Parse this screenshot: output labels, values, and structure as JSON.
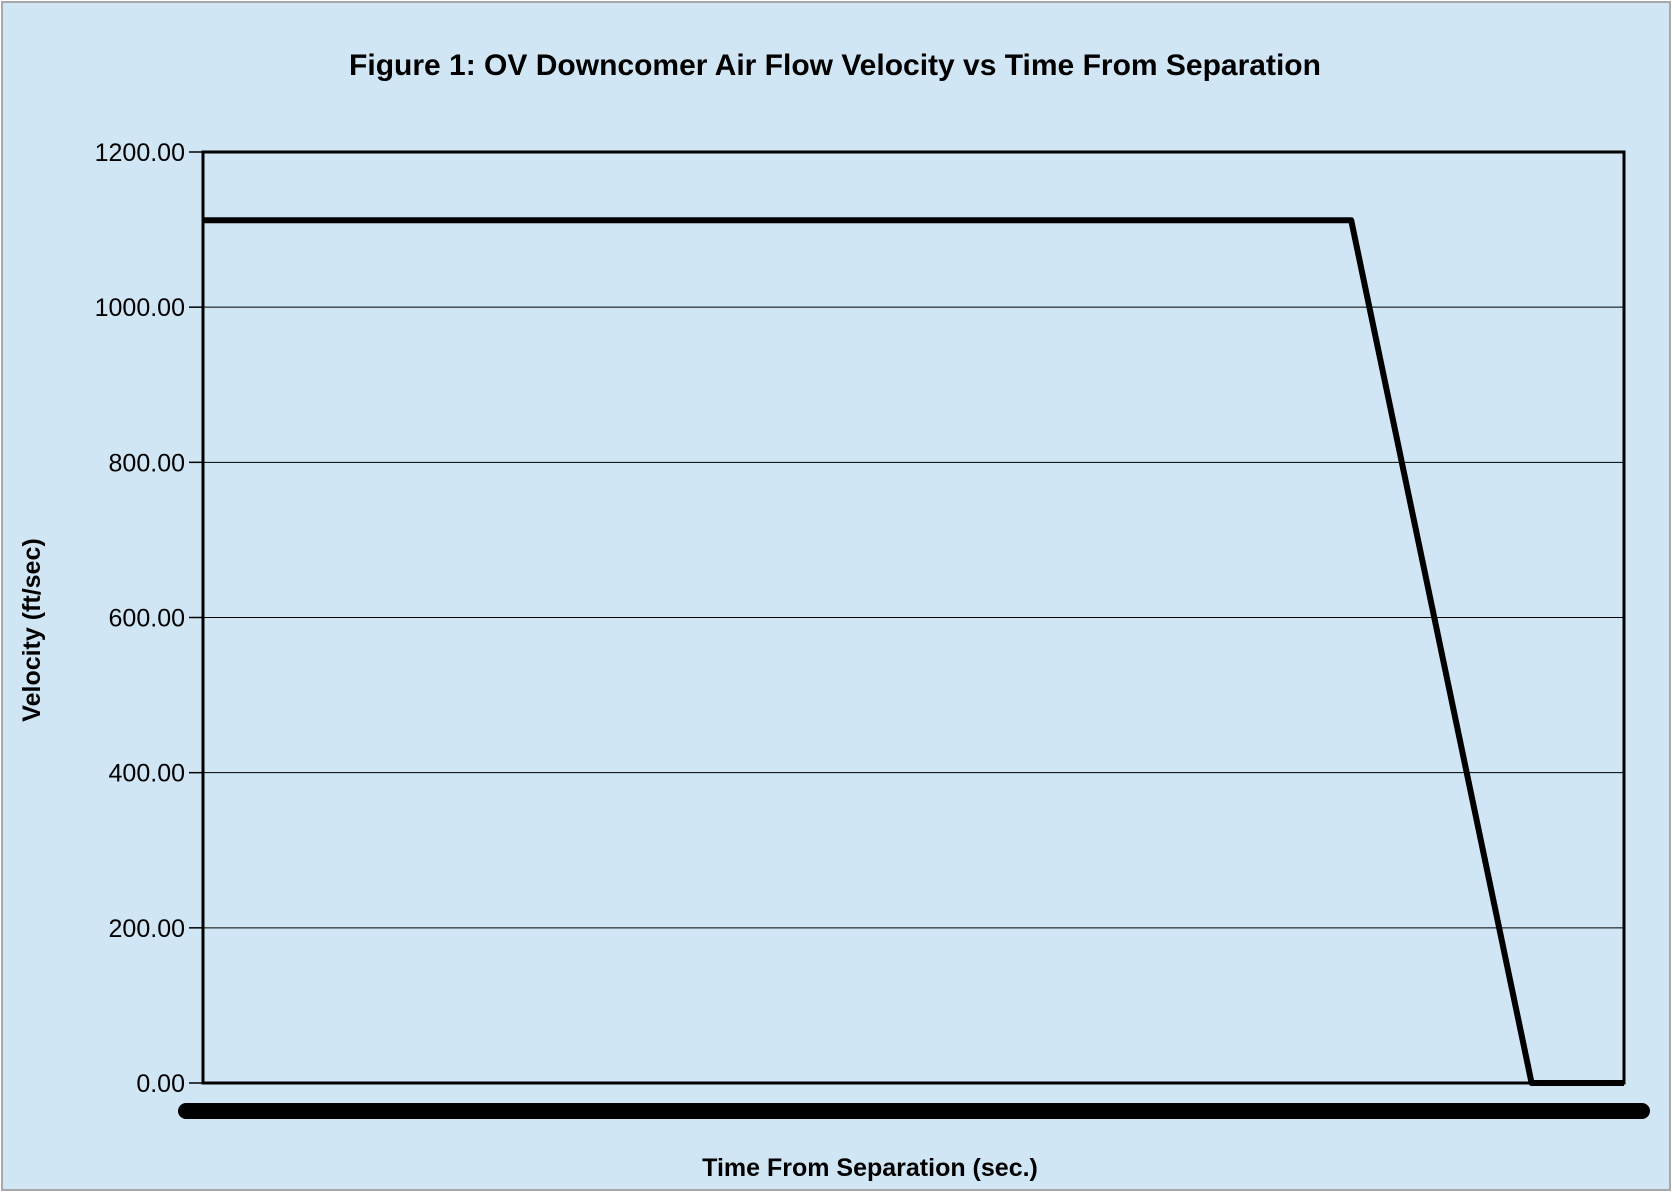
{
  "chart_data": {
    "type": "line",
    "title": "Figure 1: OV Downcomer Air Flow Velocity vs Time From Separation",
    "xlabel": "Time From Separation (sec.)",
    "ylabel": "Velocity (ft/sec)",
    "ylim": [
      0,
      1200
    ],
    "yticks": [
      "0.00",
      "200.00",
      "400.00",
      "600.00",
      "800.00",
      "1000.00",
      "1200.00"
    ],
    "grid": true,
    "x_tick_labels_shown": false,
    "x": [
      0,
      0.808,
      0.935,
      1.0
    ],
    "series": [
      {
        "values": [
          1112,
          1112,
          0,
          0
        ]
      }
    ]
  },
  "colors": {
    "background": "#d0e6f4",
    "border": "#a8a8a8",
    "line": "#000000",
    "grid": "#000000"
  }
}
